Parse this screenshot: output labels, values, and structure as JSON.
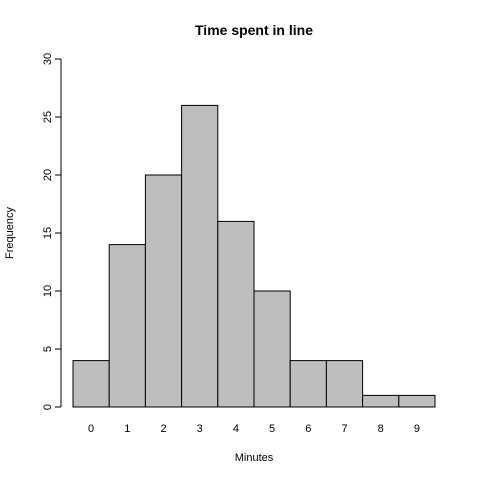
{
  "chart_data": {
    "type": "bar",
    "title": "Time spent in line",
    "xlabel": "Minutes",
    "ylabel": "Frequency",
    "categories": [
      "0",
      "1",
      "2",
      "3",
      "4",
      "5",
      "6",
      "7",
      "8",
      "9"
    ],
    "values": [
      4,
      14,
      20,
      26,
      16,
      10,
      4,
      4,
      1,
      1
    ],
    "ylim": [
      0,
      30
    ],
    "yticks": [
      "0",
      "5",
      "10",
      "15",
      "20",
      "25",
      "30"
    ],
    "grid": false,
    "legend": "none",
    "bar_color": "#bebebe"
  }
}
